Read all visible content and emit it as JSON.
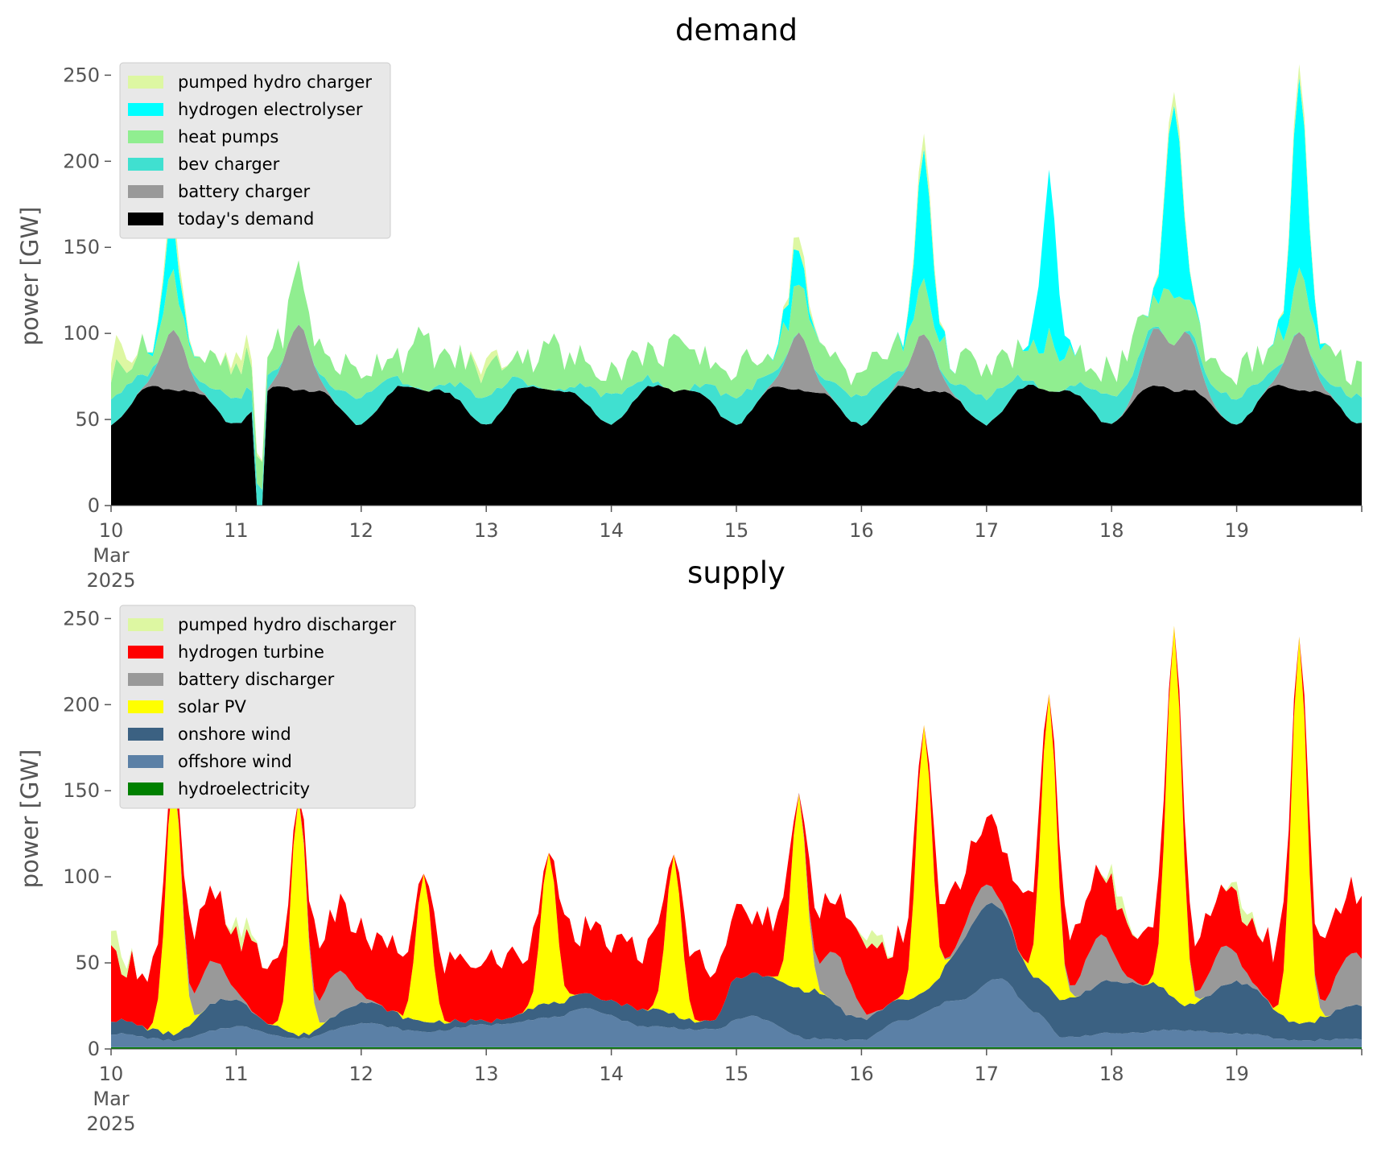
{
  "chart_data": [
    {
      "type": "area",
      "stacked": true,
      "title": "demand",
      "ylabel": "power [GW]",
      "xlabel": "",
      "ylim": [
        0,
        260
      ],
      "yticks": [
        0,
        50,
        100,
        150,
        200,
        250
      ],
      "xlim": [
        0,
        10
      ],
      "x_unit": "days since 10 Mar 2025",
      "xticks": [
        {
          "day": 0,
          "lines": [
            "10",
            "Mar",
            "2025"
          ]
        },
        {
          "day": 1,
          "lines": [
            "11"
          ]
        },
        {
          "day": 2,
          "lines": [
            "12"
          ]
        },
        {
          "day": 3,
          "lines": [
            "13"
          ]
        },
        {
          "day": 4,
          "lines": [
            "14"
          ]
        },
        {
          "day": 5,
          "lines": [
            "15"
          ]
        },
        {
          "day": 6,
          "lines": [
            "16"
          ]
        },
        {
          "day": 7,
          "lines": [
            "17"
          ]
        },
        {
          "day": 8,
          "lines": [
            "18"
          ]
        },
        {
          "day": 9,
          "lines": [
            "19"
          ]
        }
      ],
      "grid": false,
      "legend_position": "top-left",
      "series": [
        {
          "name": "today's demand",
          "color": "#000000",
          "profile": {
            "kind": "base",
            "mean": 61,
            "amp": 10,
            "dip": [
              1.18,
              0
            ]
          }
        },
        {
          "name": "battery charger",
          "color": "#999999",
          "profile": {
            "kind": "peaks",
            "peaks": [
              [
                0.5,
                35
              ],
              [
                1.5,
                38
              ],
              [
                5.5,
                33
              ],
              [
                6.5,
                33
              ],
              [
                8.35,
                33
              ],
              [
                8.6,
                33
              ],
              [
                9.5,
                34
              ]
            ],
            "width": 0.13
          }
        },
        {
          "name": "bev charger",
          "color": "#40e0d0",
          "profile": {
            "kind": "night",
            "amp": 16
          }
        },
        {
          "name": "heat pumps",
          "color": "#90ee90",
          "profile": {
            "kind": "noise",
            "mean": 15,
            "amp": 9,
            "daypeak": 18
          }
        },
        {
          "name": "hydrogen electrolyser",
          "color": "#00ffff",
          "profile": {
            "kind": "peaks",
            "peaks": [
              [
                0.48,
                30
              ],
              [
                5.47,
                22
              ],
              [
                6.5,
                75
              ],
              [
                7.5,
                92
              ],
              [
                8.5,
                112
              ],
              [
                9.5,
                110
              ]
            ],
            "width": 0.09
          }
        },
        {
          "name": "pumped hydro charger",
          "color": "#ddf7a2",
          "profile": {
            "kind": "peaks",
            "peaks": [
              [
                0.5,
                9
              ],
              [
                5.5,
                8
              ],
              [
                6.5,
                9
              ],
              [
                8.5,
                8
              ],
              [
                9.5,
                8
              ],
              [
                0.05,
                14
              ],
              [
                1.05,
                8
              ],
              [
                3.0,
                6
              ]
            ],
            "width": 0.1
          }
        }
      ]
    },
    {
      "type": "area",
      "stacked": true,
      "title": "supply",
      "ylabel": "power [GW]",
      "xlabel": "",
      "ylim": [
        0,
        260
      ],
      "yticks": [
        0,
        50,
        100,
        150,
        200,
        250
      ],
      "xlim": [
        0,
        10
      ],
      "x_unit": "days since 10 Mar 2025",
      "xticks": [
        {
          "day": 0,
          "lines": [
            "10",
            "Mar",
            "2025"
          ]
        },
        {
          "day": 1,
          "lines": [
            "11"
          ]
        },
        {
          "day": 2,
          "lines": [
            "12"
          ]
        },
        {
          "day": 3,
          "lines": [
            "13"
          ]
        },
        {
          "day": 4,
          "lines": [
            "14"
          ]
        },
        {
          "day": 5,
          "lines": [
            "15"
          ]
        },
        {
          "day": 6,
          "lines": [
            "16"
          ]
        },
        {
          "day": 7,
          "lines": [
            "17"
          ]
        },
        {
          "day": 8,
          "lines": [
            "18"
          ]
        },
        {
          "day": 9,
          "lines": [
            "19"
          ]
        }
      ],
      "grid": false,
      "legend_position": "top-left",
      "series": [
        {
          "name": "hydroelectricity",
          "color": "#008000",
          "profile": {
            "kind": "flat",
            "value": 1
          }
        },
        {
          "name": "offshore wind",
          "color": "#5b80a6",
          "profile": {
            "kind": "knots",
            "knots": [
              [
                0,
                8
              ],
              [
                0.5,
                4
              ],
              [
                1.0,
                12
              ],
              [
                1.5,
                5
              ],
              [
                2.0,
                14
              ],
              [
                2.5,
                9
              ],
              [
                3.0,
                13
              ],
              [
                3.5,
                17
              ],
              [
                3.8,
                22
              ],
              [
                4.3,
                12
              ],
              [
                4.8,
                10
              ],
              [
                5.1,
                18
              ],
              [
                5.6,
                5
              ],
              [
                6.0,
                4
              ],
              [
                6.3,
                15
              ],
              [
                6.8,
                28
              ],
              [
                7.1,
                40
              ],
              [
                7.4,
                20
              ],
              [
                7.6,
                6
              ],
              [
                8.0,
                8
              ],
              [
                8.5,
                10
              ],
              [
                9.0,
                8
              ],
              [
                9.5,
                4
              ],
              [
                10,
                5
              ]
            ]
          }
        },
        {
          "name": "onshore wind",
          "color": "#3b6182",
          "profile": {
            "kind": "knots",
            "knots": [
              [
                0,
                8
              ],
              [
                0.5,
                4
              ],
              [
                0.9,
                17
              ],
              [
                1.3,
                6
              ],
              [
                1.5,
                2
              ],
              [
                2.0,
                12
              ],
              [
                2.5,
                6
              ],
              [
                3.0,
                2
              ],
              [
                3.5,
                8
              ],
              [
                3.8,
                8
              ],
              [
                4.3,
                10
              ],
              [
                4.8,
                4
              ],
              [
                5.0,
                24
              ],
              [
                5.6,
                28
              ],
              [
                6.0,
                12
              ],
              [
                6.5,
                12
              ],
              [
                7.0,
                45
              ],
              [
                7.4,
                20
              ],
              [
                7.6,
                22
              ],
              [
                8.0,
                30
              ],
              [
                8.3,
                28
              ],
              [
                8.6,
                15
              ],
              [
                9.0,
                30
              ],
              [
                9.5,
                10
              ],
              [
                10,
                20
              ]
            ]
          }
        },
        {
          "name": "solar PV",
          "color": "#ffff00",
          "profile": {
            "kind": "peaks",
            "peaks": [
              [
                0.5,
                152
              ],
              [
                1.5,
                138
              ],
              [
                2.5,
                86
              ],
              [
                3.5,
                88
              ],
              [
                4.5,
                92
              ],
              [
                5.5,
                112
              ],
              [
                6.5,
                155
              ],
              [
                7.5,
                170
              ],
              [
                8.5,
                216
              ],
              [
                9.5,
                225
              ]
            ],
            "width": 0.085
          }
        },
        {
          "name": "battery discharger",
          "color": "#999999",
          "profile": {
            "kind": "peaks",
            "peaks": [
              [
                0.8,
                25
              ],
              [
                1.8,
                25
              ],
              [
                5.8,
                30
              ],
              [
                6.95,
                13
              ],
              [
                7.9,
                28
              ],
              [
                8.9,
                23
              ],
              [
                9.85,
                18
              ],
              [
                10,
                20
              ]
            ],
            "width": 0.16
          }
        },
        {
          "name": "hydrogen turbine",
          "color": "#ff0000",
          "profile": {
            "kind": "noise",
            "mean": 35,
            "amp": 10,
            "nightOnly": true
          }
        },
        {
          "name": "pumped hydro discharger",
          "color": "#ddf7a2",
          "profile": {
            "kind": "peaks",
            "peaks": [
              [
                0.05,
                12
              ],
              [
                1.05,
                8
              ],
              [
                6.1,
                8
              ],
              [
                8.05,
                8
              ],
              [
                9.05,
                8
              ]
            ],
            "width": 0.08
          }
        }
      ]
    }
  ]
}
